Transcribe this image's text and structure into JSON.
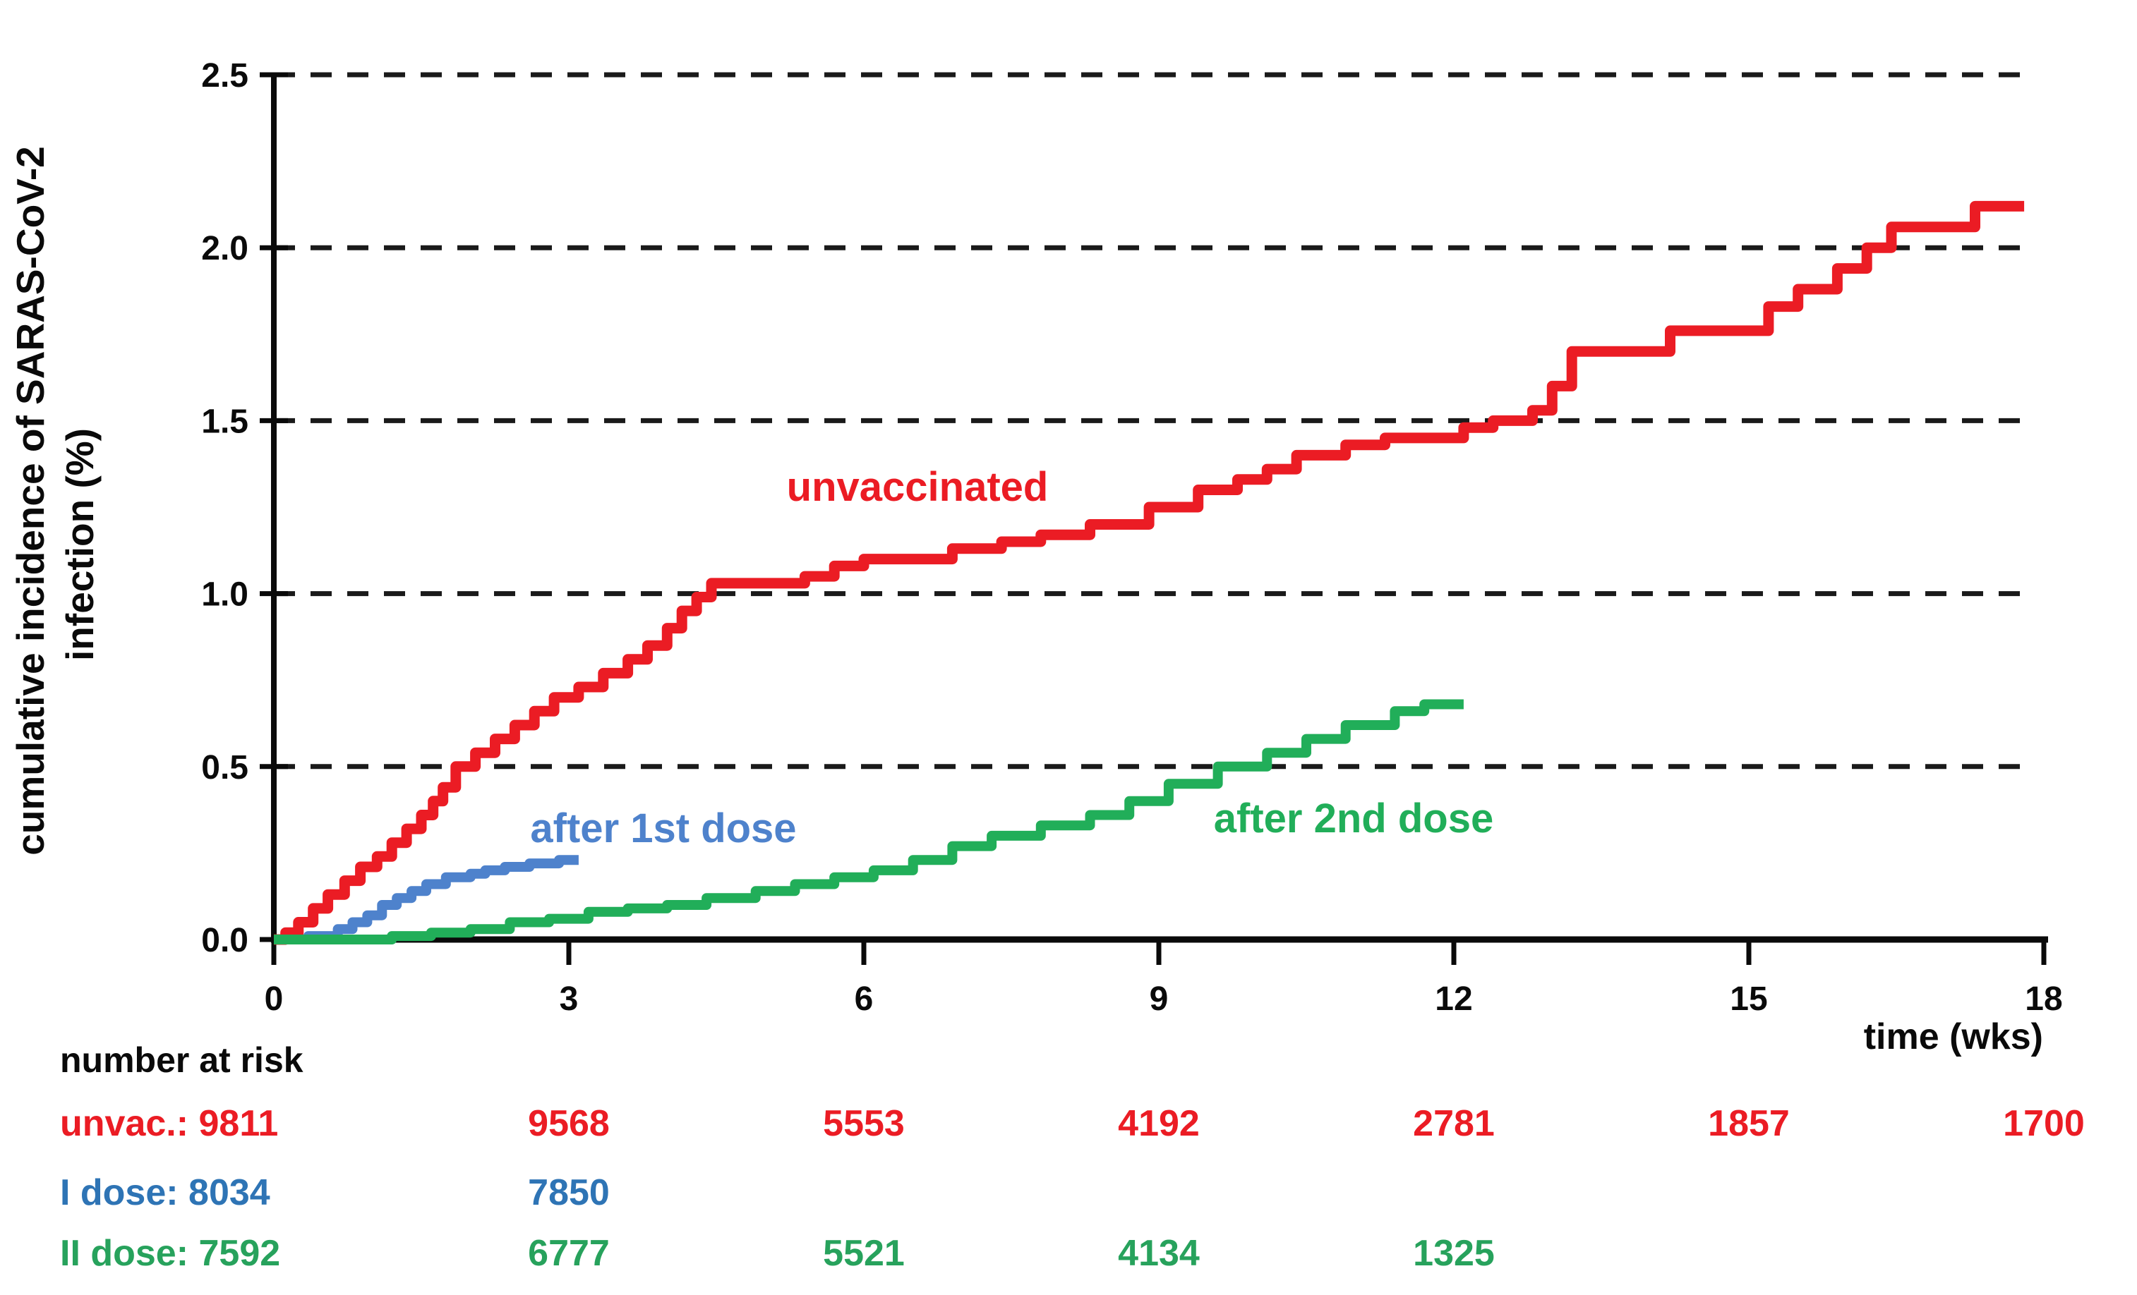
{
  "chart_data": {
    "type": "line",
    "subtype": "step-cumulative-incidence",
    "title": "",
    "xlabel": "time (wks)",
    "ylabel_line1": "cumulative incidence of SARAS-CoV-2",
    "ylabel_line2": "infection  (%)",
    "xlim": [
      0,
      18
    ],
    "ylim": [
      0.0,
      2.5
    ],
    "x_ticks": [
      0,
      3,
      6,
      9,
      12,
      15,
      18
    ],
    "y_ticks": [
      0.0,
      0.5,
      1.0,
      1.5,
      2.0,
      2.5
    ],
    "grid": "horizontal dashed black lines at every 0.5%",
    "legend_position": "inline labels next to curves",
    "colors": {
      "red": "#eb1c24",
      "blue_curve": "#4e82cc",
      "blue_risk_text": "#2e74b5",
      "green_curve": "#21ae59",
      "green_risk_text": "#27a25c",
      "axis": "#0a0a0a"
    },
    "series": [
      {
        "name": "unvaccinated",
        "color": "#eb1c24",
        "points": [
          [
            0,
            0
          ],
          [
            0.12,
            0.02
          ],
          [
            0.25,
            0.05
          ],
          [
            0.4,
            0.09
          ],
          [
            0.55,
            0.13
          ],
          [
            0.72,
            0.17
          ],
          [
            0.88,
            0.21
          ],
          [
            1.05,
            0.24
          ],
          [
            1.2,
            0.28
          ],
          [
            1.35,
            0.32
          ],
          [
            1.5,
            0.36
          ],
          [
            1.62,
            0.4
          ],
          [
            1.72,
            0.44
          ],
          [
            1.85,
            0.5
          ],
          [
            2.05,
            0.54
          ],
          [
            2.25,
            0.58
          ],
          [
            2.45,
            0.62
          ],
          [
            2.65,
            0.66
          ],
          [
            2.85,
            0.7
          ],
          [
            3.1,
            0.73
          ],
          [
            3.35,
            0.77
          ],
          [
            3.6,
            0.81
          ],
          [
            3.8,
            0.85
          ],
          [
            4.0,
            0.9
          ],
          [
            4.15,
            0.95
          ],
          [
            4.3,
            0.99
          ],
          [
            4.45,
            1.03
          ],
          [
            5.4,
            1.05
          ],
          [
            5.7,
            1.08
          ],
          [
            6.0,
            1.1
          ],
          [
            6.9,
            1.13
          ],
          [
            7.4,
            1.15
          ],
          [
            7.8,
            1.17
          ],
          [
            8.3,
            1.2
          ],
          [
            8.9,
            1.25
          ],
          [
            9.4,
            1.3
          ],
          [
            9.8,
            1.33
          ],
          [
            10.1,
            1.36
          ],
          [
            10.4,
            1.4
          ],
          [
            10.9,
            1.43
          ],
          [
            11.3,
            1.45
          ],
          [
            12.1,
            1.48
          ],
          [
            12.4,
            1.5
          ],
          [
            12.8,
            1.53
          ],
          [
            13.0,
            1.6
          ],
          [
            13.2,
            1.7
          ],
          [
            14.2,
            1.76
          ],
          [
            15.2,
            1.83
          ],
          [
            15.5,
            1.88
          ],
          [
            15.9,
            1.94
          ],
          [
            16.2,
            2.0
          ],
          [
            16.45,
            2.06
          ],
          [
            17.3,
            2.12
          ],
          [
            17.8,
            2.12
          ]
        ]
      },
      {
        "name": "after 1st dose",
        "color": "#4e82cc",
        "points": [
          [
            0,
            0
          ],
          [
            0.35,
            0.01
          ],
          [
            0.65,
            0.03
          ],
          [
            0.8,
            0.05
          ],
          [
            0.95,
            0.07
          ],
          [
            1.1,
            0.1
          ],
          [
            1.25,
            0.12
          ],
          [
            1.4,
            0.14
          ],
          [
            1.55,
            0.16
          ],
          [
            1.75,
            0.18
          ],
          [
            2.0,
            0.19
          ],
          [
            2.15,
            0.2
          ],
          [
            2.35,
            0.21
          ],
          [
            2.6,
            0.22
          ],
          [
            2.9,
            0.23
          ],
          [
            3.1,
            0.23
          ]
        ]
      },
      {
        "name": "after 2nd dose",
        "color": "#21ae59",
        "points": [
          [
            0,
            0
          ],
          [
            1.2,
            0.01
          ],
          [
            1.6,
            0.02
          ],
          [
            2.0,
            0.03
          ],
          [
            2.4,
            0.05
          ],
          [
            2.8,
            0.06
          ],
          [
            3.2,
            0.08
          ],
          [
            3.6,
            0.09
          ],
          [
            4.0,
            0.1
          ],
          [
            4.4,
            0.12
          ],
          [
            4.9,
            0.14
          ],
          [
            5.3,
            0.16
          ],
          [
            5.7,
            0.18
          ],
          [
            6.1,
            0.2
          ],
          [
            6.5,
            0.23
          ],
          [
            6.9,
            0.27
          ],
          [
            7.3,
            0.3
          ],
          [
            7.8,
            0.33
          ],
          [
            8.3,
            0.36
          ],
          [
            8.7,
            0.4
          ],
          [
            9.1,
            0.45
          ],
          [
            9.6,
            0.5
          ],
          [
            10.1,
            0.54
          ],
          [
            10.5,
            0.58
          ],
          [
            10.9,
            0.62
          ],
          [
            11.4,
            0.66
          ],
          [
            11.7,
            0.68
          ],
          [
            12.1,
            0.68
          ]
        ]
      }
    ],
    "risk_table": {
      "header": "number at risk",
      "week_columns": [
        3,
        6,
        9,
        12,
        15,
        18
      ],
      "rows": [
        {
          "label": "unvac.: 9811",
          "color": "#eb1c24",
          "values": {
            "3": "9568",
            "6": "5553",
            "9": "4192",
            "12": "2781",
            "15": "1857",
            "18": "1700"
          }
        },
        {
          "label": "I dose:  8034",
          "color": "#2e74b5",
          "values": {
            "3": "7850"
          }
        },
        {
          "label": "II dose: 7592",
          "color": "#27a25c",
          "values": {
            "3": "6777",
            "6": "5521",
            "9": "4134",
            "12": "1325"
          }
        }
      ]
    }
  }
}
